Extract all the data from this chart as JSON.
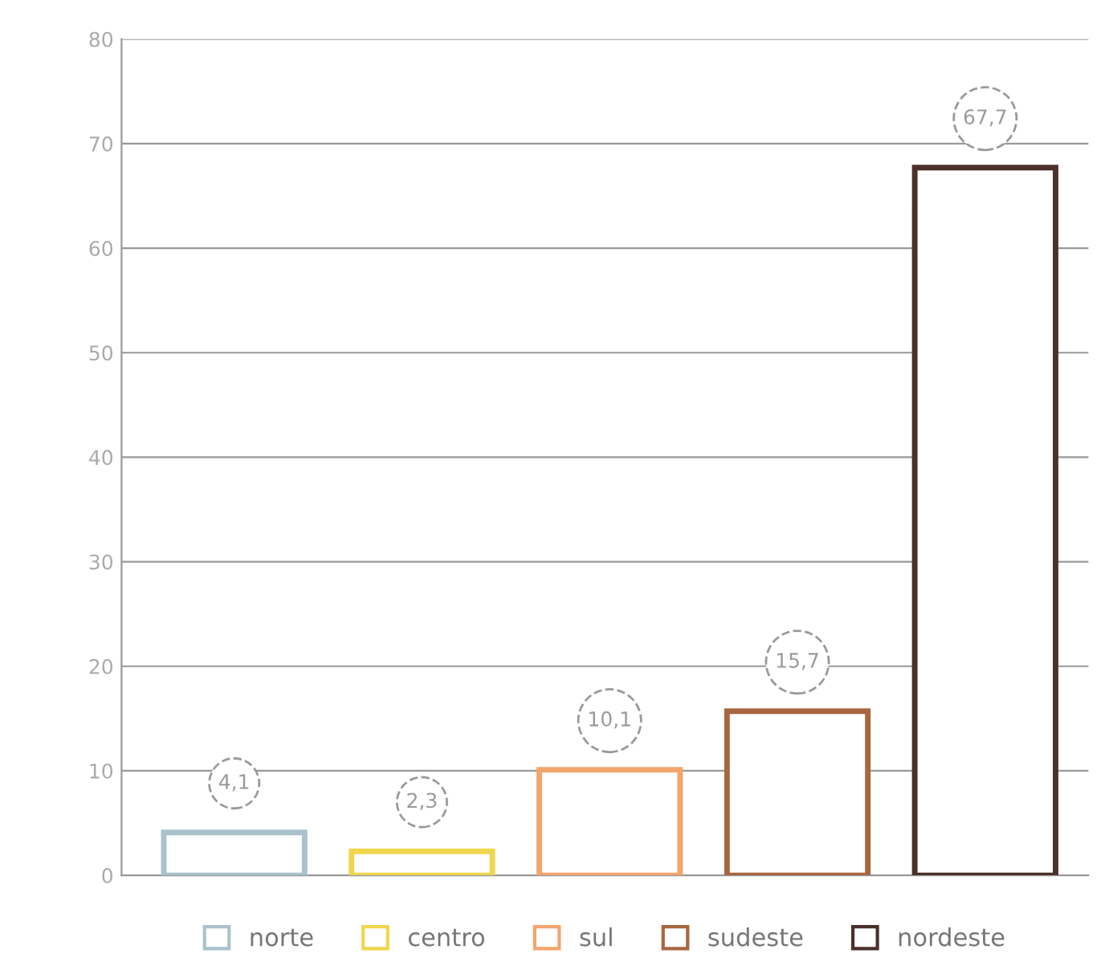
{
  "chart_data": {
    "type": "bar",
    "categories": [
      null,
      null,
      null,
      null,
      null
    ],
    "series": [
      {
        "name": "norte",
        "color": "#a9c2cb",
        "values": [
          4.1,
          null,
          null,
          null,
          null
        ],
        "value_labels": [
          "4,1",
          null,
          null,
          null,
          null
        ]
      },
      {
        "name": "centro",
        "color": "#f0d64e",
        "values": [
          null,
          2.3,
          null,
          null,
          null
        ],
        "value_labels": [
          null,
          "2,3",
          null,
          null,
          null
        ]
      },
      {
        "name": "sul",
        "color": "#f3a56c",
        "values": [
          null,
          null,
          10.1,
          null,
          null
        ],
        "value_labels": [
          null,
          null,
          "10,1",
          null,
          null
        ]
      },
      {
        "name": "sudeste",
        "color": "#a8663f",
        "values": [
          null,
          null,
          null,
          15.7,
          null
        ],
        "value_labels": [
          null,
          null,
          null,
          "15,7",
          null
        ]
      },
      {
        "name": "nordeste",
        "color": "#4b302b",
        "values": [
          null,
          null,
          null,
          null,
          67.7
        ],
        "value_labels": [
          null,
          null,
          null,
          null,
          "67,7"
        ]
      }
    ],
    "ylim": [
      0,
      80
    ],
    "yticks": [
      0,
      10,
      20,
      30,
      40,
      50,
      60,
      70,
      80
    ],
    "grid": "y",
    "legend": "bottom"
  }
}
